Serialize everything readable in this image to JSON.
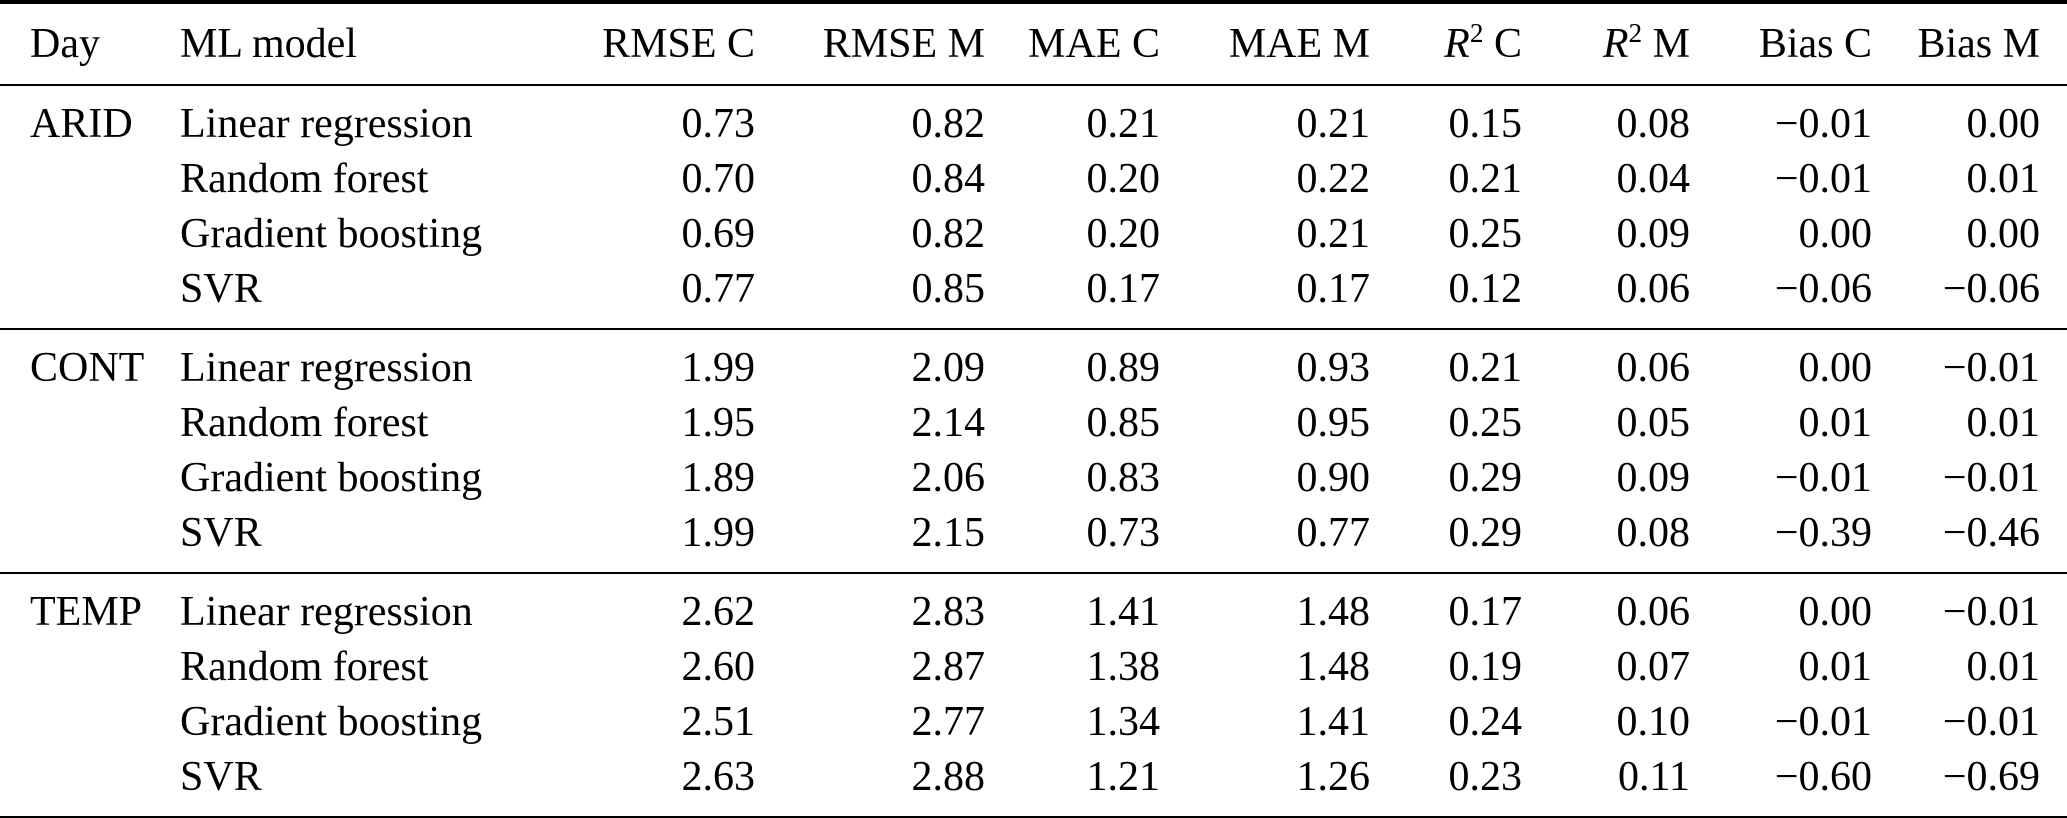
{
  "table": {
    "columns": [
      {
        "key": "day",
        "label": "Day",
        "align": "left"
      },
      {
        "key": "model",
        "label": "ML model",
        "align": "left"
      },
      {
        "key": "rmse_c",
        "label": "RMSE C",
        "align": "num"
      },
      {
        "key": "rmse_m",
        "label": "RMSE M",
        "align": "num"
      },
      {
        "key": "mae_c",
        "label": "MAE C",
        "align": "num"
      },
      {
        "key": "mae_m",
        "label": "MAE M",
        "align": "num"
      },
      {
        "key": "r2_c",
        "label_math": {
          "var": "R",
          "sup": "2",
          "tail": " C"
        },
        "align": "num"
      },
      {
        "key": "r2_m",
        "label_math": {
          "var": "R",
          "sup": "2",
          "tail": " M"
        },
        "align": "num"
      },
      {
        "key": "bias_c",
        "label": "Bias C",
        "align": "num"
      },
      {
        "key": "bias_m",
        "label": "Bias M",
        "align": "num"
      }
    ],
    "groups": [
      {
        "day": "ARID",
        "rows": [
          {
            "model": "Linear regression",
            "values": [
              "0.73",
              "0.82",
              "0.21",
              "0.21",
              "0.15",
              "0.08",
              "−0.01",
              "0.00"
            ]
          },
          {
            "model": "Random forest",
            "values": [
              "0.70",
              "0.84",
              "0.20",
              "0.22",
              "0.21",
              "0.04",
              "−0.01",
              "0.01"
            ]
          },
          {
            "model": "Gradient boosting",
            "values": [
              "0.69",
              "0.82",
              "0.20",
              "0.21",
              "0.25",
              "0.09",
              "0.00",
              "0.00"
            ]
          },
          {
            "model": "SVR",
            "values": [
              "0.77",
              "0.85",
              "0.17",
              "0.17",
              "0.12",
              "0.06",
              "−0.06",
              "−0.06"
            ]
          }
        ]
      },
      {
        "day": "CONT",
        "rows": [
          {
            "model": "Linear regression",
            "values": [
              "1.99",
              "2.09",
              "0.89",
              "0.93",
              "0.21",
              "0.06",
              "0.00",
              "−0.01"
            ]
          },
          {
            "model": "Random forest",
            "values": [
              "1.95",
              "2.14",
              "0.85",
              "0.95",
              "0.25",
              "0.05",
              "0.01",
              "0.01"
            ]
          },
          {
            "model": "Gradient boosting",
            "values": [
              "1.89",
              "2.06",
              "0.83",
              "0.90",
              "0.29",
              "0.09",
              "−0.01",
              "−0.01"
            ]
          },
          {
            "model": "SVR",
            "values": [
              "1.99",
              "2.15",
              "0.73",
              "0.77",
              "0.29",
              "0.08",
              "−0.39",
              "−0.46"
            ]
          }
        ]
      },
      {
        "day": "TEMP",
        "rows": [
          {
            "model": "Linear regression",
            "values": [
              "2.62",
              "2.83",
              "1.41",
              "1.48",
              "0.17",
              "0.06",
              "0.00",
              "−0.01"
            ]
          },
          {
            "model": "Random forest",
            "values": [
              "2.60",
              "2.87",
              "1.38",
              "1.48",
              "0.19",
              "0.07",
              "0.01",
              "0.01"
            ]
          },
          {
            "model": "Gradient boosting",
            "values": [
              "2.51",
              "2.77",
              "1.34",
              "1.41",
              "0.24",
              "0.10",
              "−0.01",
              "−0.01"
            ]
          },
          {
            "model": "SVR",
            "values": [
              "2.63",
              "2.88",
              "1.21",
              "1.26",
              "0.23",
              "0.11",
              "−0.60",
              "−0.69"
            ]
          }
        ]
      }
    ]
  },
  "colors": {
    "text": "#000000",
    "background": "#ffffff",
    "rule": "#000000"
  }
}
